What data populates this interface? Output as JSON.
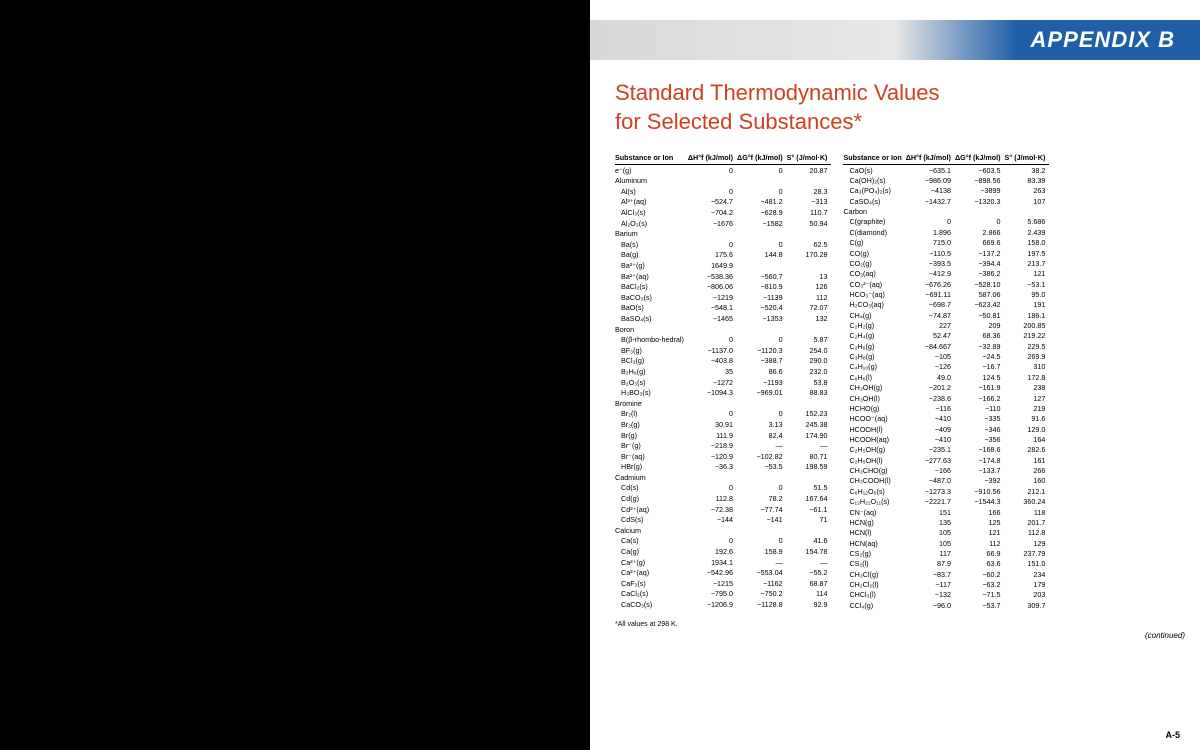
{
  "appendix": "APPENDIX B",
  "title_line1": "Standard Thermodynamic Values",
  "title_line2": "for Selected Substances*",
  "headers": {
    "substance": "Substance or Ion",
    "dH": "ΔH°f (kJ/mol)",
    "dG": "ΔG°f (kJ/mol)",
    "S": "S° (J/mol·K)"
  },
  "footnote": "*All values at 298 K.",
  "continued": "(continued)",
  "page_number": "A-5",
  "colors": {
    "title": "#d04020",
    "header_blue": "#1e5fa8",
    "header_grey": "#d8d8d8"
  },
  "fonts": {
    "title_size": 22,
    "table_size": 7.2,
    "appendix_size": 22
  },
  "left_table": [
    {
      "s": "e⁻(g)",
      "h": "0",
      "g": "0",
      "e": "20.87"
    },
    {
      "s": "Aluminum",
      "cat": true
    },
    {
      "s": "Al(s)",
      "h": "0",
      "g": "0",
      "e": "28.3",
      "i": 1
    },
    {
      "s": "Al³⁺(aq)",
      "h": "−524.7",
      "g": "−481.2",
      "e": "−313",
      "i": 1
    },
    {
      "s": "AlCl₃(s)",
      "h": "−704.2",
      "g": "−628.9",
      "e": "110.7",
      "i": 1
    },
    {
      "s": "Al₂O₃(s)",
      "h": "−1676",
      "g": "−1582",
      "e": "50.94",
      "i": 1
    },
    {
      "s": "Barium",
      "cat": true
    },
    {
      "s": "Ba(s)",
      "h": "0",
      "g": "0",
      "e": "62.5",
      "i": 1
    },
    {
      "s": "Ba(g)",
      "h": "175.6",
      "g": "144.8",
      "e": "170.28",
      "i": 1
    },
    {
      "s": "Ba²⁺(g)",
      "h": "1649.9",
      "g": "",
      "e": "",
      "i": 1
    },
    {
      "s": "Ba²⁺(aq)",
      "h": "−538.36",
      "g": "−560.7",
      "e": "13",
      "i": 1
    },
    {
      "s": "BaCl₂(s)",
      "h": "−806.06",
      "g": "−810.9",
      "e": "126",
      "i": 1
    },
    {
      "s": "BaCO₃(s)",
      "h": "−1219",
      "g": "−1139",
      "e": "112",
      "i": 1
    },
    {
      "s": "BaO(s)",
      "h": "−548.1",
      "g": "−520.4",
      "e": "72.07",
      "i": 1
    },
    {
      "s": "BaSO₄(s)",
      "h": "−1465",
      "g": "−1353",
      "e": "132",
      "i": 1
    },
    {
      "s": "Boron",
      "cat": true
    },
    {
      "s": "B(β-rhombo-hedral)",
      "h": "0",
      "g": "0",
      "e": "5.87",
      "i": 1
    },
    {
      "s": "BF₃(g)",
      "h": "−1137.0",
      "g": "−1120.3",
      "e": "254.0",
      "i": 1
    },
    {
      "s": "BCl₃(g)",
      "h": "−403.8",
      "g": "−388.7",
      "e": "290.0",
      "i": 1
    },
    {
      "s": "B₂H₆(g)",
      "h": "35",
      "g": "86.6",
      "e": "232.0",
      "i": 1
    },
    {
      "s": "B₂O₃(s)",
      "h": "−1272",
      "g": "−1193",
      "e": "53.8",
      "i": 1
    },
    {
      "s": "H₃BO₃(s)",
      "h": "−1094.3",
      "g": "−969.01",
      "e": "88.83",
      "i": 1
    },
    {
      "s": "Bromine",
      "cat": true
    },
    {
      "s": "Br₂(l)",
      "h": "0",
      "g": "0",
      "e": "152.23",
      "i": 1
    },
    {
      "s": "Br₂(g)",
      "h": "30.91",
      "g": "3.13",
      "e": "245.38",
      "i": 1
    },
    {
      "s": "Br(g)",
      "h": "111.9",
      "g": "82.4",
      "e": "174.90",
      "i": 1
    },
    {
      "s": "Br⁻(g)",
      "h": "−218.9",
      "g": "—",
      "e": "—",
      "i": 1
    },
    {
      "s": "Br⁻(aq)",
      "h": "−120.9",
      "g": "−102.82",
      "e": "80.71",
      "i": 1
    },
    {
      "s": "HBr(g)",
      "h": "−36.3",
      "g": "−53.5",
      "e": "198.59",
      "i": 1
    },
    {
      "s": "Cadmium",
      "cat": true
    },
    {
      "s": "Cd(s)",
      "h": "0",
      "g": "0",
      "e": "51.5",
      "i": 1
    },
    {
      "s": "Cd(g)",
      "h": "112.8",
      "g": "78.2",
      "e": "167.64",
      "i": 1
    },
    {
      "s": "Cd²⁺(aq)",
      "h": "−72.38",
      "g": "−77.74",
      "e": "−61.1",
      "i": 1
    },
    {
      "s": "CdS(s)",
      "h": "−144",
      "g": "−141",
      "e": "71",
      "i": 1
    },
    {
      "s": "Calcium",
      "cat": true
    },
    {
      "s": "Ca(s)",
      "h": "0",
      "g": "0",
      "e": "41.6",
      "i": 1
    },
    {
      "s": "Ca(g)",
      "h": "192.6",
      "g": "158.9",
      "e": "154.78",
      "i": 1
    },
    {
      "s": "Ca²⁺(g)",
      "h": "1934.1",
      "g": "—",
      "e": "—",
      "i": 1
    },
    {
      "s": "Ca²⁺(aq)",
      "h": "−542.96",
      "g": "−553.04",
      "e": "−55.2",
      "i": 1
    },
    {
      "s": "CaF₂(s)",
      "h": "−1215",
      "g": "−1162",
      "e": "68.87",
      "i": 1
    },
    {
      "s": "CaCl₂(s)",
      "h": "−795.0",
      "g": "−750.2",
      "e": "114",
      "i": 1
    },
    {
      "s": "CaCO₃(s)",
      "h": "−1206.9",
      "g": "−1128.8",
      "e": "92.9",
      "i": 1
    }
  ],
  "right_table": [
    {
      "s": "CaO(s)",
      "h": "−635.1",
      "g": "−603.5",
      "e": "38.2",
      "i": 1
    },
    {
      "s": "Ca(OH)₂(s)",
      "h": "−986.09",
      "g": "−898.56",
      "e": "83.39",
      "i": 1
    },
    {
      "s": "Ca₃(PO₄)₂(s)",
      "h": "−4138",
      "g": "−3899",
      "e": "263",
      "i": 1
    },
    {
      "s": "CaSO₄(s)",
      "h": "−1432.7",
      "g": "−1320.3",
      "e": "107",
      "i": 1
    },
    {
      "s": "Carbon",
      "cat": true
    },
    {
      "s": "C(graphite)",
      "h": "0",
      "g": "0",
      "e": "5.686",
      "i": 1
    },
    {
      "s": "C(diamond)",
      "h": "1.896",
      "g": "2.866",
      "e": "2.439",
      "i": 1
    },
    {
      "s": "C(g)",
      "h": "715.0",
      "g": "669.6",
      "e": "158.0",
      "i": 1
    },
    {
      "s": "CO(g)",
      "h": "−110.5",
      "g": "−137.2",
      "e": "197.5",
      "i": 1
    },
    {
      "s": "CO₂(g)",
      "h": "−393.5",
      "g": "−394.4",
      "e": "213.7",
      "i": 1
    },
    {
      "s": "CO₂(aq)",
      "h": "−412.9",
      "g": "−386.2",
      "e": "121",
      "i": 1
    },
    {
      "s": "CO₃²⁻(aq)",
      "h": "−676.26",
      "g": "−528.10",
      "e": "−53.1",
      "i": 1
    },
    {
      "s": "HCO₃⁻(aq)",
      "h": "−691.11",
      "g": "587.06",
      "e": "95.0",
      "i": 1
    },
    {
      "s": "H₂CO₃(aq)",
      "h": "−698.7",
      "g": "−623.42",
      "e": "191",
      "i": 1
    },
    {
      "s": "CH₄(g)",
      "h": "−74.87",
      "g": "−50.81",
      "e": "186.1",
      "i": 1
    },
    {
      "s": "C₂H₂(g)",
      "h": "227",
      "g": "209",
      "e": "200.85",
      "i": 1
    },
    {
      "s": "C₂H₄(g)",
      "h": "52.47",
      "g": "68.36",
      "e": "219.22",
      "i": 1
    },
    {
      "s": "C₂H₆(g)",
      "h": "−84.667",
      "g": "−32.89",
      "e": "229.5",
      "i": 1
    },
    {
      "s": "C₃H₈(g)",
      "h": "−105",
      "g": "−24.5",
      "e": "269.9",
      "i": 1
    },
    {
      "s": "C₄H₁₀(g)",
      "h": "−126",
      "g": "−16.7",
      "e": "310",
      "i": 1
    },
    {
      "s": "C₆H₆(l)",
      "h": "49.0",
      "g": "124.5",
      "e": "172.8",
      "i": 1
    },
    {
      "s": "CH₃OH(g)",
      "h": "−201.2",
      "g": "−161.9",
      "e": "238",
      "i": 1
    },
    {
      "s": "CH₃OH(l)",
      "h": "−238.6",
      "g": "−166.2",
      "e": "127",
      "i": 1
    },
    {
      "s": "HCHO(g)",
      "h": "−116",
      "g": "−110",
      "e": "219",
      "i": 1
    },
    {
      "s": "HCOO⁻(aq)",
      "h": "−410",
      "g": "−335",
      "e": "91.6",
      "i": 1
    },
    {
      "s": "HCOOH(l)",
      "h": "−409",
      "g": "−346",
      "e": "129.0",
      "i": 1
    },
    {
      "s": "HCOOH(aq)",
      "h": "−410",
      "g": "−356",
      "e": "164",
      "i": 1
    },
    {
      "s": "C₂H₅OH(g)",
      "h": "−235.1",
      "g": "−168.6",
      "e": "282.6",
      "i": 1
    },
    {
      "s": "C₂H₅OH(l)",
      "h": "−277.63",
      "g": "−174.8",
      "e": "161",
      "i": 1
    },
    {
      "s": "CH₃CHO(g)",
      "h": "−166",
      "g": "−133.7",
      "e": "266",
      "i": 1
    },
    {
      "s": "CH₃COOH(l)",
      "h": "−487.0",
      "g": "−392",
      "e": "160",
      "i": 1
    },
    {
      "s": "C₆H₁₂O₆(s)",
      "h": "−1273.3",
      "g": "−910.56",
      "e": "212.1",
      "i": 1
    },
    {
      "s": "C₁₂H₂₂O₁₁(s)",
      "h": "−2221.7",
      "g": "−1544.3",
      "e": "360.24",
      "i": 1
    },
    {
      "s": "CN⁻(aq)",
      "h": "151",
      "g": "166",
      "e": "118",
      "i": 1
    },
    {
      "s": "HCN(g)",
      "h": "135",
      "g": "125",
      "e": "201.7",
      "i": 1
    },
    {
      "s": "HCN(l)",
      "h": "105",
      "g": "121",
      "e": "112.8",
      "i": 1
    },
    {
      "s": "HCN(aq)",
      "h": "105",
      "g": "112",
      "e": "129",
      "i": 1
    },
    {
      "s": "CS₂(g)",
      "h": "117",
      "g": "66.9",
      "e": "237.79",
      "i": 1
    },
    {
      "s": "CS₂(l)",
      "h": "87.9",
      "g": "63.6",
      "e": "151.0",
      "i": 1
    },
    {
      "s": "CH₃Cl(g)",
      "h": "−83.7",
      "g": "−60.2",
      "e": "234",
      "i": 1
    },
    {
      "s": "CH₂Cl₂(l)",
      "h": "−117",
      "g": "−63.2",
      "e": "179",
      "i": 1
    },
    {
      "s": "CHCl₃(l)",
      "h": "−132",
      "g": "−71.5",
      "e": "203",
      "i": 1
    },
    {
      "s": "CCl₄(g)",
      "h": "−96.0",
      "g": "−53.7",
      "e": "309.7",
      "i": 1
    }
  ]
}
